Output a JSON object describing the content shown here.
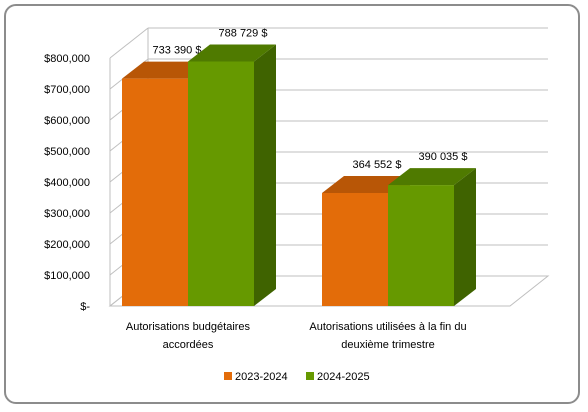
{
  "chart_data": {
    "type": "bar",
    "categories": [
      [
        "Autorisations budgétaires",
        "accordées"
      ],
      [
        "Autorisations utilisées à la fin du",
        "deuxième trimestre"
      ]
    ],
    "series": [
      {
        "name": "2023-2024",
        "values": [
          733390,
          364552
        ],
        "labels": [
          "733 390 $",
          "364 552 $"
        ],
        "color": "#e36c09",
        "top_color": "#b85606",
        "side_color": "#a04b05"
      },
      {
        "name": "2024-2025",
        "values": [
          788729,
          390035
        ],
        "labels": [
          "788 729 $",
          "390 035 $"
        ],
        "color": "#669900",
        "top_color": "#4f7a00",
        "side_color": "#3f6300"
      }
    ],
    "y_ticks": [
      {
        "value": 0,
        "label": "$-"
      },
      {
        "value": 100000,
        "label": "$100,000"
      },
      {
        "value": 200000,
        "label": "$200,000"
      },
      {
        "value": 300000,
        "label": "$300,000"
      },
      {
        "value": 400000,
        "label": "$400,000"
      },
      {
        "value": 500000,
        "label": "$500,000"
      },
      {
        "value": 600000,
        "label": "$600,000"
      },
      {
        "value": 700000,
        "label": "$700,000"
      },
      {
        "value": 800000,
        "label": "$800,000"
      }
    ],
    "ylim": [
      0,
      800000
    ],
    "grid": true,
    "three_d": true,
    "legend_position": "bottom"
  }
}
